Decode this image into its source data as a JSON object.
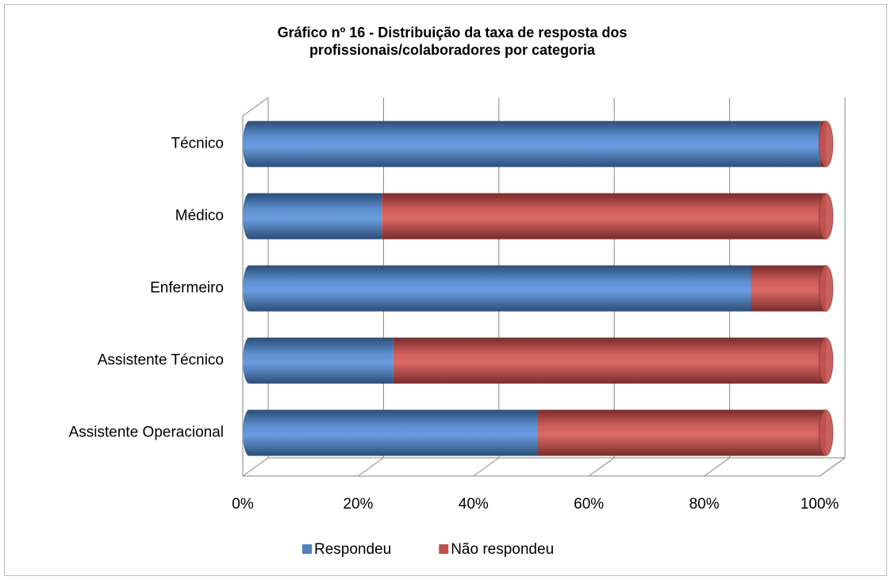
{
  "chart_data": {
    "type": "bar",
    "orientation": "horizontal",
    "stacked": true,
    "title": "Gráfico nº 16 - Distribuição da taxa de resposta dos profissionais/colaboradores por categoria",
    "categories": [
      "Técnico",
      "Médico",
      "Enfermeiro",
      "Assistente Técnico",
      "Assistente Operacional"
    ],
    "series": [
      {
        "name": "Respondeu",
        "color": "#4f81bd",
        "values": [
          99,
          23,
          87,
          25,
          50
        ]
      },
      {
        "name": "Não respondeu",
        "color": "#c0504d",
        "values": [
          1,
          77,
          13,
          75,
          50
        ]
      }
    ],
    "xlim": [
      0,
      100
    ],
    "xticks": [
      {
        "value": 0,
        "label": "0%"
      },
      {
        "value": 20,
        "label": "20%"
      },
      {
        "value": 40,
        "label": "40%"
      },
      {
        "value": 60,
        "label": "60%"
      },
      {
        "value": 80,
        "label": "80%"
      },
      {
        "value": 100,
        "label": "100%"
      }
    ],
    "grid": true,
    "legend": "bottom"
  }
}
